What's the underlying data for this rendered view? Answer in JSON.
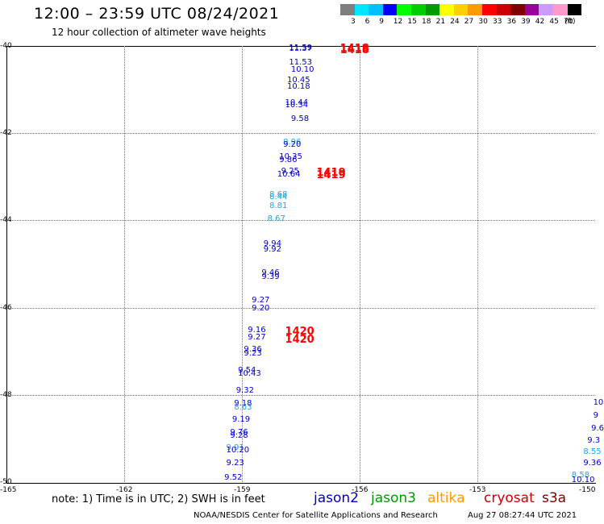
{
  "title": "12:00 – 23:59 UTC 08/24/2021",
  "subtitle": "12 hour collection of altimeter wave heights",
  "legend": {
    "unit": "(ft)",
    "items": [
      {
        "label": "3",
        "color": "#7f7f7f"
      },
      {
        "label": "6",
        "color": "#00e6ff"
      },
      {
        "label": "9",
        "color": "#00bfff"
      },
      {
        "label": "12",
        "color": "#0000ff"
      },
      {
        "label": "15",
        "color": "#00ff00"
      },
      {
        "label": "18",
        "color": "#00cc00"
      },
      {
        "label": "21",
        "color": "#009900"
      },
      {
        "label": "24",
        "color": "#ffff00"
      },
      {
        "label": "27",
        "color": "#ffd000"
      },
      {
        "label": "30",
        "color": "#ff9900"
      },
      {
        "label": "33",
        "color": "#ff0000"
      },
      {
        "label": "36",
        "color": "#cc0000"
      },
      {
        "label": "39",
        "color": "#800000"
      },
      {
        "label": "42",
        "color": "#990099"
      },
      {
        "label": "45",
        "color": "#cc99ff"
      },
      {
        "label": "70",
        "color": "#ff99cc"
      },
      {
        "label": "",
        "color": "#000000"
      }
    ]
  },
  "axes": {
    "x_ticks": [
      "-165",
      "-162",
      "-159",
      "-156",
      "-153",
      "-150"
    ],
    "y_ticks": [
      "-40",
      "-42",
      "-44",
      "-46",
      "-48",
      "-50"
    ]
  },
  "chart_data": {
    "type": "scatter",
    "xlim": [
      -165,
      -150
    ],
    "ylim": [
      -50,
      -40
    ],
    "grid": true,
    "value_unit": "ft",
    "track_times": [
      {
        "text": "1418",
        "lon": -156.5,
        "lat": -40.05
      },
      {
        "text": "1418",
        "lon": -156.5,
        "lat": -40.1
      },
      {
        "text": "1419",
        "lon": -157.1,
        "lat": -42.9
      },
      {
        "text": "1419",
        "lon": -157.1,
        "lat": -42.95
      },
      {
        "text": "1420",
        "lon": -157.9,
        "lat": -46.55
      },
      {
        "text": "1420",
        "lon": -157.9,
        "lat": -46.72
      }
    ],
    "points": [
      {
        "text": "11.37",
        "lon": -157.8,
        "lat": -40.08,
        "sat": "jason2"
      },
      {
        "text": "11.59",
        "lon": -157.8,
        "lat": -40.05,
        "sat": "jason2"
      },
      {
        "text": "11.53",
        "lon": -157.8,
        "lat": -40.38,
        "sat": "jason2"
      },
      {
        "text": "10.10",
        "lon": -157.75,
        "lat": -40.55,
        "sat": "jason2"
      },
      {
        "text": "10.45",
        "lon": -157.85,
        "lat": -40.8,
        "sat": "jason2"
      },
      {
        "text": "10.18",
        "lon": -157.85,
        "lat": -40.95,
        "sat": "jason2"
      },
      {
        "text": "10.44",
        "lon": -157.9,
        "lat": -41.32,
        "sat": "jason2"
      },
      {
        "text": "10.34",
        "lon": -157.9,
        "lat": -41.37,
        "sat": "jason2"
      },
      {
        "text": "9.58",
        "lon": -157.75,
        "lat": -41.68,
        "sat": "jason2"
      },
      {
        "text": "9.96",
        "lon": -157.95,
        "lat": -42.22,
        "sat": "cyan"
      },
      {
        "text": "9.20",
        "lon": -157.95,
        "lat": -42.27,
        "sat": "jason2"
      },
      {
        "text": "10.35",
        "lon": -158.05,
        "lat": -42.55,
        "sat": "jason2"
      },
      {
        "text": "9.86",
        "lon": -158.05,
        "lat": -42.62,
        "sat": "jason2"
      },
      {
        "text": "9.25",
        "lon": -158.0,
        "lat": -42.88,
        "sat": "jason2"
      },
      {
        "text": "10.64",
        "lon": -158.1,
        "lat": -42.95,
        "sat": "jason2"
      },
      {
        "text": "8.68",
        "lon": -158.3,
        "lat": -43.42,
        "sat": "cyan"
      },
      {
        "text": "8.44",
        "lon": -158.3,
        "lat": -43.47,
        "sat": "cyan"
      },
      {
        "text": "8.81",
        "lon": -158.3,
        "lat": -43.67,
        "sat": "cyan"
      },
      {
        "text": "8.67",
        "lon": -158.35,
        "lat": -43.98,
        "sat": "cyan"
      },
      {
        "text": "9.94",
        "lon": -158.45,
        "lat": -44.55,
        "sat": "jason2"
      },
      {
        "text": "9.92",
        "lon": -158.45,
        "lat": -44.67,
        "sat": "jason2"
      },
      {
        "text": "9.46",
        "lon": -158.5,
        "lat": -45.22,
        "sat": "jason2"
      },
      {
        "text": "9.39",
        "lon": -158.5,
        "lat": -45.3,
        "sat": "jason2"
      },
      {
        "text": "9.27",
        "lon": -158.75,
        "lat": -45.85,
        "sat": "jason2"
      },
      {
        "text": "9.20",
        "lon": -158.75,
        "lat": -46.03,
        "sat": "jason2"
      },
      {
        "text": "9.16",
        "lon": -158.85,
        "lat": -46.52,
        "sat": "jason2"
      },
      {
        "text": "9.27",
        "lon": -158.85,
        "lat": -46.7,
        "sat": "jason2"
      },
      {
        "text": "9.36",
        "lon": -158.95,
        "lat": -46.97,
        "sat": "jason2"
      },
      {
        "text": "9.23",
        "lon": -158.95,
        "lat": -47.07,
        "sat": "jason2"
      },
      {
        "text": "9.54",
        "lon": -159.1,
        "lat": -47.45,
        "sat": "jason2"
      },
      {
        "text": "10.43",
        "lon": -159.1,
        "lat": -47.52,
        "sat": "jason2"
      },
      {
        "text": "9.32",
        "lon": -159.15,
        "lat": -47.92,
        "sat": "jason2"
      },
      {
        "text": "9.18",
        "lon": -159.2,
        "lat": -48.2,
        "sat": "jason2"
      },
      {
        "text": "8.63",
        "lon": -159.2,
        "lat": -48.3,
        "sat": "cyan"
      },
      {
        "text": "9.19",
        "lon": -159.25,
        "lat": -48.58,
        "sat": "jason2"
      },
      {
        "text": "9.76",
        "lon": -159.3,
        "lat": -48.88,
        "sat": "jason2"
      },
      {
        "text": "9.28",
        "lon": -159.3,
        "lat": -48.95,
        "sat": "jason2"
      },
      {
        "text": "9.91",
        "lon": -159.4,
        "lat": -49.23,
        "sat": "cyan"
      },
      {
        "text": "10.20",
        "lon": -159.4,
        "lat": -49.28,
        "sat": "jason2"
      },
      {
        "text": "9.23",
        "lon": -159.4,
        "lat": -49.58,
        "sat": "jason2"
      },
      {
        "text": "9.52",
        "lon": -159.45,
        "lat": -49.9,
        "sat": "jason2"
      },
      {
        "text": "10",
        "lon": -150.05,
        "lat": -48.18,
        "sat": "jason2"
      },
      {
        "text": "9",
        "lon": -150.05,
        "lat": -48.48,
        "sat": "jason2"
      },
      {
        "text": "9.6",
        "lon": -150.1,
        "lat": -48.78,
        "sat": "jason2"
      },
      {
        "text": "9.3",
        "lon": -150.2,
        "lat": -49.05,
        "sat": "jason2"
      },
      {
        "text": "8.55",
        "lon": -150.3,
        "lat": -49.32,
        "sat": "cyan"
      },
      {
        "text": "9.36",
        "lon": -150.3,
        "lat": -49.58,
        "sat": "jason2"
      },
      {
        "text": "8.58",
        "lon": -150.6,
        "lat": -49.85,
        "sat": "cyan"
      },
      {
        "text": "10.10",
        "lon": -150.6,
        "lat": -49.97,
        "sat": "jason2"
      }
    ]
  },
  "note": "note: 1) Time is in UTC; 2) SWH is in feet",
  "satellites": [
    {
      "name": "jason2",
      "color": "#0000cc"
    },
    {
      "name": "jason3",
      "color": "#009900"
    },
    {
      "name": "altika",
      "color": "#ff9900"
    },
    {
      "name": "cryosat",
      "color": "#cc0000"
    },
    {
      "name": "s3a",
      "color": "#800000"
    }
  ],
  "credit": "NOAA/NESDIS Center for Satellite Applications and Research",
  "timestamp": "Aug 27 08:27:44 UTC 2021"
}
